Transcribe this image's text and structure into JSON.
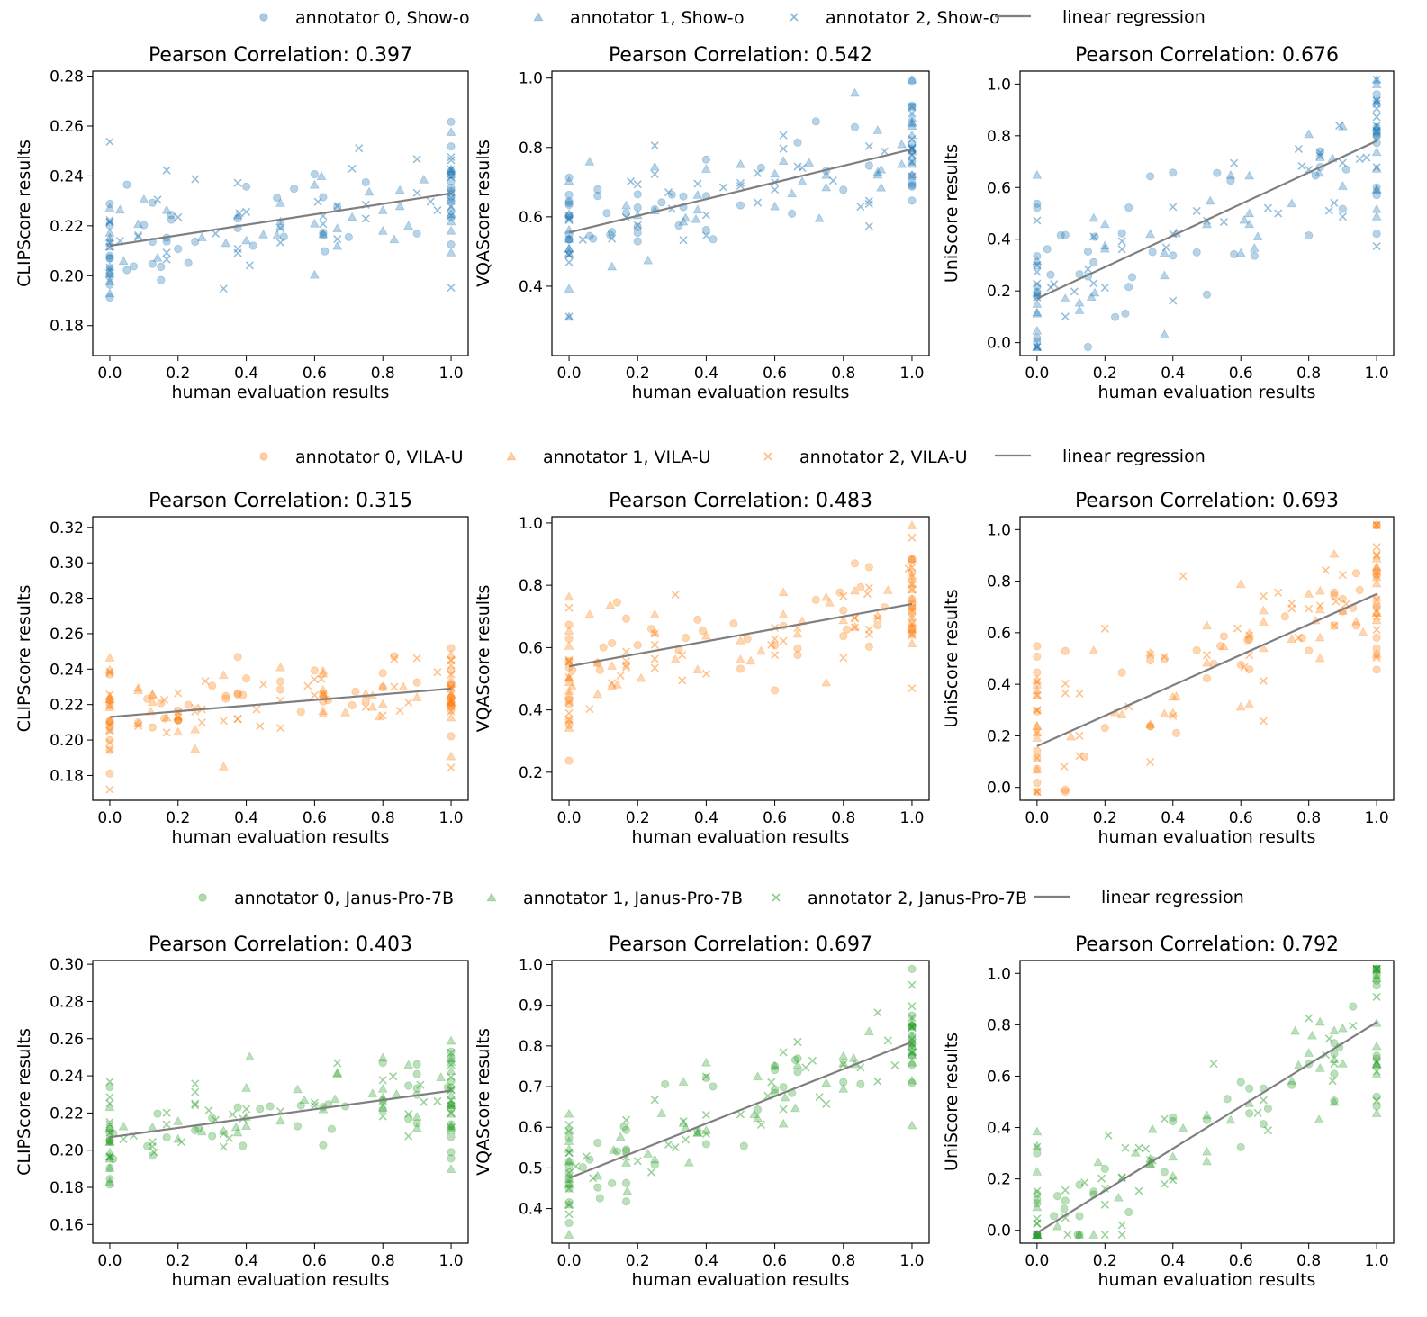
{
  "figure": {
    "x_axis_label": "human evaluation results",
    "regression_label": "linear regression",
    "regression_color": "#7f7f7f"
  },
  "rows": [
    {
      "model": "Show-o",
      "color": "#1f77b4",
      "legend": [
        {
          "label": "annotator 0, Show-o",
          "marker": "circle"
        },
        {
          "label": "annotator 1, Show-o",
          "marker": "triangle"
        },
        {
          "label": "annotator 2, Show-o",
          "marker": "x"
        },
        {
          "label": "linear regression",
          "marker": "line"
        }
      ]
    },
    {
      "model": "VILA-U",
      "color": "#ff7f0e",
      "legend": [
        {
          "label": "annotator 0, VILA-U",
          "marker": "circle"
        },
        {
          "label": "annotator 1, VILA-U",
          "marker": "triangle"
        },
        {
          "label": "annotator 2, VILA-U",
          "marker": "x"
        },
        {
          "label": "linear regression",
          "marker": "line"
        }
      ]
    },
    {
      "model": "Janus-Pro-7B",
      "color": "#2ca02c",
      "legend": [
        {
          "label": "annotator 0, Janus-Pro-7B",
          "marker": "circle"
        },
        {
          "label": "annotator 1, Janus-Pro-7B",
          "marker": "triangle"
        },
        {
          "label": "annotator 2, Janus-Pro-7B",
          "marker": "x"
        },
        {
          "label": "linear regression",
          "marker": "line"
        }
      ]
    }
  ],
  "chart_data": [
    {
      "type": "scatter",
      "row": 0,
      "col": 0,
      "model": "Show-o",
      "title": "Pearson Correlation: 0.397",
      "xlabel": "human evaluation results",
      "ylabel": "CLIPScore results",
      "xlim": [
        -0.05,
        1.05
      ],
      "ylim": [
        0.168,
        0.282
      ],
      "xticks": [
        0.0,
        0.2,
        0.4,
        0.6,
        0.8,
        1.0
      ],
      "yticks": [
        0.18,
        0.2,
        0.22,
        0.24,
        0.26,
        0.28
      ],
      "tick_decimals": 2,
      "regression": [
        [
          0,
          0.212
        ],
        [
          1,
          0.233
        ]
      ],
      "spread": 0.018,
      "seed": 11
    },
    {
      "type": "scatter",
      "row": 0,
      "col": 1,
      "model": "Show-o",
      "title": "Pearson Correlation: 0.542",
      "xlabel": "human evaluation results",
      "ylabel": "VQAScore results",
      "xlim": [
        -0.05,
        1.05
      ],
      "ylim": [
        0.2,
        1.02
      ],
      "xticks": [
        0.0,
        0.2,
        0.4,
        0.6,
        0.8,
        1.0
      ],
      "yticks": [
        0.4,
        0.6,
        0.8,
        1.0
      ],
      "tick_decimals": 1,
      "regression": [
        [
          0,
          0.555
        ],
        [
          1,
          0.795
        ]
      ],
      "spread": 0.13,
      "seed": 12
    },
    {
      "type": "scatter",
      "row": 0,
      "col": 2,
      "model": "Show-o",
      "title": "Pearson Correlation: 0.676",
      "xlabel": "human evaluation results",
      "ylabel": "UniScore results",
      "xlim": [
        -0.05,
        1.05
      ],
      "ylim": [
        -0.05,
        1.05
      ],
      "xticks": [
        0.0,
        0.2,
        0.4,
        0.6,
        0.8,
        1.0
      ],
      "yticks": [
        0.0,
        0.2,
        0.4,
        0.6,
        0.8,
        1.0
      ],
      "tick_decimals": 1,
      "regression": [
        [
          0,
          0.17
        ],
        [
          1,
          0.78
        ]
      ],
      "spread": 0.24,
      "seed": 13
    },
    {
      "type": "scatter",
      "row": 1,
      "col": 0,
      "model": "VILA-U",
      "title": "Pearson Correlation: 0.315",
      "xlabel": "human evaluation results",
      "ylabel": "CLIPScore results",
      "xlim": [
        -0.05,
        1.05
      ],
      "ylim": [
        0.166,
        0.326
      ],
      "xticks": [
        0.0,
        0.2,
        0.4,
        0.6,
        0.8,
        1.0
      ],
      "yticks": [
        0.18,
        0.2,
        0.22,
        0.24,
        0.26,
        0.28,
        0.3,
        0.32
      ],
      "tick_decimals": 2,
      "regression": [
        [
          0,
          0.213
        ],
        [
          1,
          0.229
        ]
      ],
      "spread": 0.018,
      "seed": 21
    },
    {
      "type": "scatter",
      "row": 1,
      "col": 1,
      "model": "VILA-U",
      "title": "Pearson Correlation: 0.483",
      "xlabel": "human evaluation results",
      "ylabel": "VQAScore results",
      "xlim": [
        -0.05,
        1.05
      ],
      "ylim": [
        0.11,
        1.02
      ],
      "xticks": [
        0.0,
        0.2,
        0.4,
        0.6,
        0.8,
        1.0
      ],
      "yticks": [
        0.2,
        0.4,
        0.6,
        0.8,
        1.0
      ],
      "tick_decimals": 1,
      "regression": [
        [
          0,
          0.54
        ],
        [
          1,
          0.74
        ]
      ],
      "spread": 0.12,
      "seed": 22
    },
    {
      "type": "scatter",
      "row": 1,
      "col": 2,
      "model": "VILA-U",
      "title": "Pearson Correlation: 0.693",
      "xlabel": "human evaluation results",
      "ylabel": "UniScore results",
      "xlim": [
        -0.05,
        1.05
      ],
      "ylim": [
        -0.05,
        1.05
      ],
      "xticks": [
        0.0,
        0.2,
        0.4,
        0.6,
        0.8,
        1.0
      ],
      "yticks": [
        0.0,
        0.2,
        0.4,
        0.6,
        0.8,
        1.0
      ],
      "tick_decimals": 1,
      "regression": [
        [
          0,
          0.16
        ],
        [
          1,
          0.75
        ]
      ],
      "spread": 0.22,
      "seed": 23
    },
    {
      "type": "scatter",
      "row": 2,
      "col": 0,
      "model": "Janus-Pro-7B",
      "title": "Pearson Correlation: 0.403",
      "xlabel": "human evaluation results",
      "ylabel": "CLIPScore results",
      "xlim": [
        -0.05,
        1.05
      ],
      "ylim": [
        0.15,
        0.302
      ],
      "xticks": [
        0.0,
        0.2,
        0.4,
        0.6,
        0.8,
        1.0
      ],
      "yticks": [
        0.16,
        0.18,
        0.2,
        0.22,
        0.24,
        0.26,
        0.28,
        0.3
      ],
      "tick_decimals": 2,
      "regression": [
        [
          0,
          0.207
        ],
        [
          1,
          0.232
        ]
      ],
      "spread": 0.02,
      "seed": 31
    },
    {
      "type": "scatter",
      "row": 2,
      "col": 1,
      "model": "Janus-Pro-7B",
      "title": "Pearson Correlation: 0.697",
      "xlabel": "human evaluation results",
      "ylabel": "VQAScore results",
      "xlim": [
        -0.05,
        1.05
      ],
      "ylim": [
        0.315,
        1.01
      ],
      "xticks": [
        0.0,
        0.2,
        0.4,
        0.6,
        0.8,
        1.0
      ],
      "yticks": [
        0.4,
        0.5,
        0.6,
        0.7,
        0.8,
        0.9,
        1.0
      ],
      "tick_decimals": 1,
      "regression": [
        [
          0,
          0.475
        ],
        [
          1,
          0.81
        ]
      ],
      "spread": 0.1,
      "seed": 32
    },
    {
      "type": "scatter",
      "row": 2,
      "col": 2,
      "model": "Janus-Pro-7B",
      "title": "Pearson Correlation: 0.792",
      "xlabel": "human evaluation results",
      "ylabel": "UniScore results",
      "xlim": [
        -0.05,
        1.05
      ],
      "ylim": [
        -0.05,
        1.05
      ],
      "xticks": [
        0.0,
        0.2,
        0.4,
        0.6,
        0.8,
        1.0
      ],
      "yticks": [
        0.0,
        0.2,
        0.4,
        0.6,
        0.8,
        1.0
      ],
      "tick_decimals": 1,
      "regression": [
        [
          0,
          -0.01
        ],
        [
          1,
          0.81
        ]
      ],
      "spread": 0.2,
      "seed": 33
    }
  ]
}
